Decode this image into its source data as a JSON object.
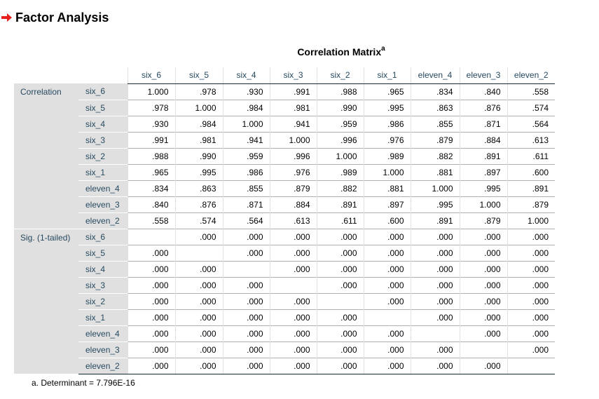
{
  "page": {
    "heading": "Factor Analysis"
  },
  "table": {
    "caption": "Correlation Matrix",
    "caption_marker": "a",
    "columns": [
      "six_6",
      "six_5",
      "six_4",
      "six_3",
      "six_2",
      "six_1",
      "eleven_4",
      "eleven_3",
      "eleven_2"
    ],
    "groups": [
      {
        "label": "Correlation",
        "rows": [
          {
            "label": "six_6",
            "values": [
              "1.000",
              ".978",
              ".930",
              ".991",
              ".988",
              ".965",
              ".834",
              ".840",
              ".558"
            ]
          },
          {
            "label": "six_5",
            "values": [
              ".978",
              "1.000",
              ".984",
              ".981",
              ".990",
              ".995",
              ".863",
              ".876",
              ".574"
            ]
          },
          {
            "label": "six_4",
            "values": [
              ".930",
              ".984",
              "1.000",
              ".941",
              ".959",
              ".986",
              ".855",
              ".871",
              ".564"
            ]
          },
          {
            "label": "six_3",
            "values": [
              ".991",
              ".981",
              ".941",
              "1.000",
              ".996",
              ".976",
              ".879",
              ".884",
              ".613"
            ]
          },
          {
            "label": "six_2",
            "values": [
              ".988",
              ".990",
              ".959",
              ".996",
              "1.000",
              ".989",
              ".882",
              ".891",
              ".611"
            ]
          },
          {
            "label": "six_1",
            "values": [
              ".965",
              ".995",
              ".986",
              ".976",
              ".989",
              "1.000",
              ".881",
              ".897",
              ".600"
            ]
          },
          {
            "label": "eleven_4",
            "values": [
              ".834",
              ".863",
              ".855",
              ".879",
              ".882",
              ".881",
              "1.000",
              ".995",
              ".891"
            ]
          },
          {
            "label": "eleven_3",
            "values": [
              ".840",
              ".876",
              ".871",
              ".884",
              ".891",
              ".897",
              ".995",
              "1.000",
              ".879"
            ]
          },
          {
            "label": "eleven_2",
            "values": [
              ".558",
              ".574",
              ".564",
              ".613",
              ".611",
              ".600",
              ".891",
              ".879",
              "1.000"
            ]
          }
        ]
      },
      {
        "label": "Sig. (1-tailed)",
        "rows": [
          {
            "label": "six_6",
            "values": [
              "",
              ".000",
              ".000",
              ".000",
              ".000",
              ".000",
              ".000",
              ".000",
              ".000"
            ]
          },
          {
            "label": "six_5",
            "values": [
              ".000",
              "",
              ".000",
              ".000",
              ".000",
              ".000",
              ".000",
              ".000",
              ".000"
            ]
          },
          {
            "label": "six_4",
            "values": [
              ".000",
              ".000",
              "",
              ".000",
              ".000",
              ".000",
              ".000",
              ".000",
              ".000"
            ]
          },
          {
            "label": "six_3",
            "values": [
              ".000",
              ".000",
              ".000",
              "",
              ".000",
              ".000",
              ".000",
              ".000",
              ".000"
            ]
          },
          {
            "label": "six_2",
            "values": [
              ".000",
              ".000",
              ".000",
              ".000",
              "",
              ".000",
              ".000",
              ".000",
              ".000"
            ]
          },
          {
            "label": "six_1",
            "values": [
              ".000",
              ".000",
              ".000",
              ".000",
              ".000",
              "",
              ".000",
              ".000",
              ".000"
            ]
          },
          {
            "label": "eleven_4",
            "values": [
              ".000",
              ".000",
              ".000",
              ".000",
              ".000",
              ".000",
              "",
              ".000",
              ".000"
            ]
          },
          {
            "label": "eleven_3",
            "values": [
              ".000",
              ".000",
              ".000",
              ".000",
              ".000",
              ".000",
              ".000",
              "",
              ".000"
            ]
          },
          {
            "label": "eleven_2",
            "values": [
              ".000",
              ".000",
              ".000",
              ".000",
              ".000",
              ".000",
              ".000",
              ".000",
              ""
            ]
          }
        ]
      }
    ],
    "footnote": "a. Determinant = 7.796E-16"
  },
  "colors": {
    "arrow": "#e8201c",
    "label_text": "#264a60",
    "label_background": "#e0e0e0",
    "rule": "#152935"
  },
  "icons": {
    "heading_arrow": "red-right-arrow-icon"
  }
}
